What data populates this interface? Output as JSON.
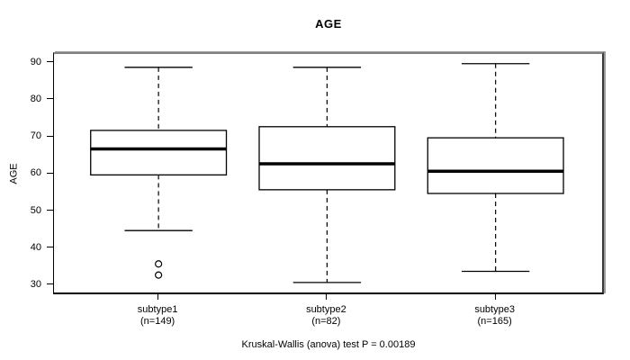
{
  "chart_data": {
    "type": "boxplot",
    "title": "AGE",
    "ylabel": "AGE",
    "xlabel": "",
    "caption": "Kruskal-Wallis (anova) test P = 0.00189",
    "ylim": [
      28.3,
      92.6
    ],
    "yticks": [
      30,
      40,
      50,
      60,
      70,
      80,
      90
    ],
    "grid": false,
    "legend": "none",
    "groups": [
      {
        "label": "subtype1",
        "sublabel": "(n=149)",
        "n": 149,
        "whisker_low": 45,
        "q1": 60,
        "median": 67,
        "q3": 72,
        "whisker_high": 89,
        "outliers": [
          36,
          33
        ]
      },
      {
        "label": "subtype2",
        "sublabel": "(n=82)",
        "n": 82,
        "whisker_low": 31,
        "q1": 56,
        "median": 63,
        "q3": 73,
        "whisker_high": 89,
        "outliers": []
      },
      {
        "label": "subtype3",
        "sublabel": "(n=165)",
        "n": 165,
        "whisker_low": 34,
        "q1": 55,
        "median": 61,
        "q3": 70,
        "whisker_high": 90,
        "outliers": []
      }
    ]
  },
  "colors": {
    "stroke": "#000000",
    "box_fill": "#ffffff",
    "frame_shadow": "#828282",
    "background": "#ffffff"
  }
}
